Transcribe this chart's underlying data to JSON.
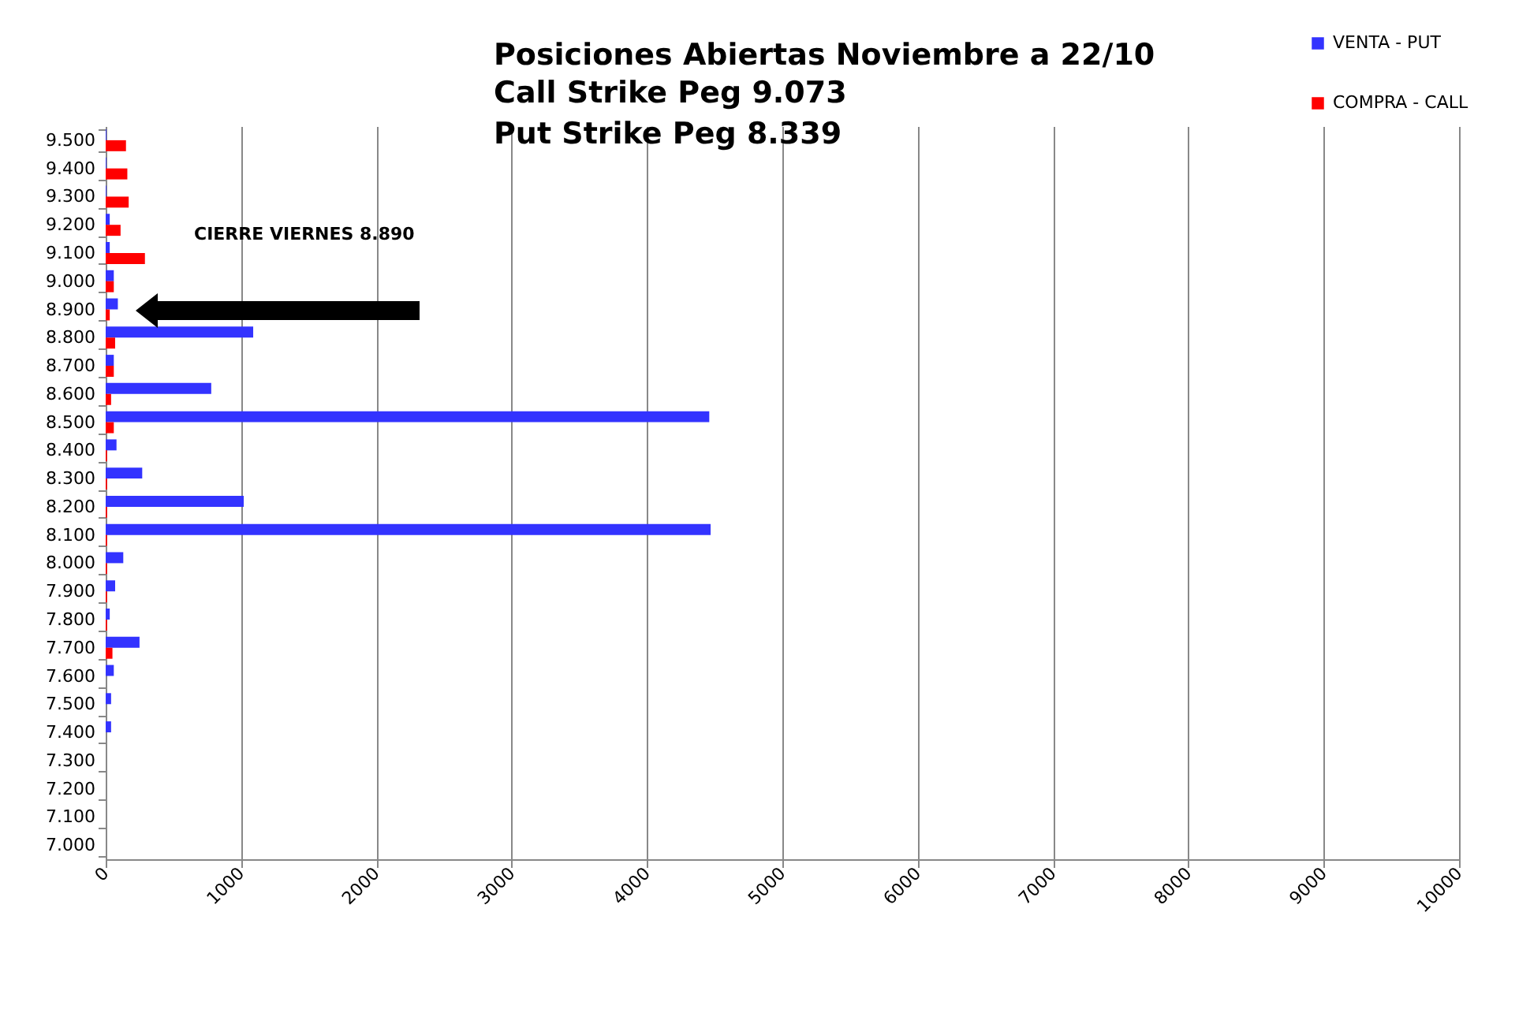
{
  "chart_data": {
    "type": "bar",
    "orientation": "horizontal",
    "title": "Posiciones Abiertas Noviembre a 22/10",
    "subtitle": "Call Strike Peg          9.073\nPut Strike Peg          8.339",
    "annotations": [
      "CIERRE VIERNES 8.890"
    ],
    "categories": [
      "9.500",
      "9.400",
      "9.300",
      "9.200",
      "9.100",
      "9.000",
      "8.900",
      "8.800",
      "8.700",
      "8.600",
      "8.500",
      "8.400",
      "8.300",
      "8.200",
      "8.100",
      "8.000",
      "7.900",
      "7.800",
      "7.700",
      "7.600",
      "7.500",
      "7.400",
      "7.300",
      "7.200",
      "7.100",
      "7.000"
    ],
    "series": [
      {
        "name": "VENTA - PUT",
        "color": "#3333ff",
        "values": [
          5,
          5,
          5,
          30,
          30,
          60,
          90,
          1090,
          60,
          780,
          4460,
          80,
          270,
          1020,
          4470,
          130,
          70,
          30,
          250,
          60,
          40,
          40,
          0,
          0,
          0,
          0
        ]
      },
      {
        "name": "COMPRA - CALL",
        "color": "#ff0000",
        "values": [
          150,
          160,
          170,
          110,
          290,
          60,
          30,
          70,
          60,
          40,
          60,
          10,
          10,
          10,
          10,
          10,
          10,
          10,
          50,
          0,
          0,
          0,
          0,
          0,
          0,
          0
        ]
      }
    ],
    "xlim": [
      0,
      10000
    ],
    "xticks": [
      0,
      1000,
      2000,
      3000,
      4000,
      5000,
      6000,
      7000,
      8000,
      9000,
      10000
    ],
    "grid": "x",
    "legend": "top right"
  }
}
